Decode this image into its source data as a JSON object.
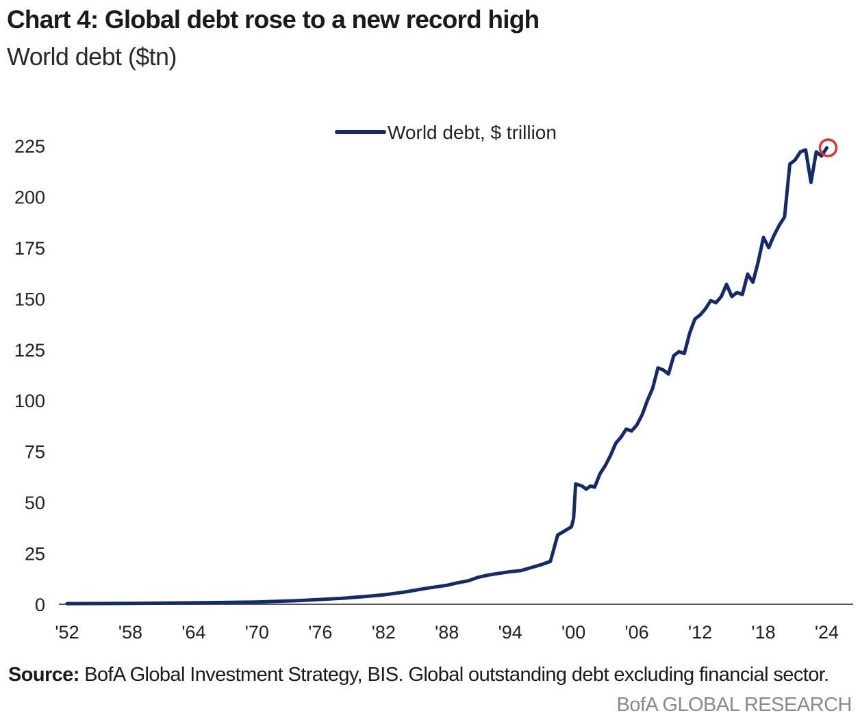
{
  "header": {
    "title": "Chart 4: Global debt rose to a new record high",
    "subtitle": "World debt ($tn)"
  },
  "chart_data": {
    "type": "line",
    "title": "Chart 4: Global debt rose to a new record high",
    "subtitle": "World debt ($tn)",
    "xlabel": "",
    "ylabel": "",
    "xlim": [
      1952,
      2026.5
    ],
    "ylim": [
      0,
      225
    ],
    "yticks": [
      0,
      25,
      50,
      75,
      100,
      125,
      150,
      175,
      200,
      225
    ],
    "xticks": [
      1952,
      1958,
      1964,
      1970,
      1976,
      1982,
      1988,
      1994,
      2000,
      2006,
      2012,
      2018,
      2024
    ],
    "xtick_labels": [
      "'52",
      "'58",
      "'64",
      "'70",
      "'76",
      "'82",
      "'88",
      "'94",
      "'00",
      "'06",
      "'12",
      "'18",
      "'24"
    ],
    "grid": false,
    "legend_position": "top-center",
    "series": [
      {
        "name": "World debt, $ trillion",
        "color": "#132a6b",
        "x": [
          1952,
          1958,
          1964,
          1970,
          1974,
          1978,
          1980,
          1982,
          1984,
          1986,
          1988,
          1989,
          1990,
          1991,
          1992,
          1993,
          1994,
          1995,
          1996,
          1997,
          1997.5,
          1997.8,
          1998.5,
          1999,
          1999.8,
          2000,
          2000.2,
          2000.8,
          2001.2,
          2001.6,
          2002,
          2002.5,
          2003,
          2003.5,
          2004,
          2004.5,
          2005,
          2005.5,
          2006,
          2006.5,
          2007,
          2007.5,
          2008,
          2008.5,
          2009,
          2009.5,
          2010,
          2010.5,
          2011,
          2011.5,
          2012,
          2012.5,
          2013,
          2013.5,
          2014,
          2014.5,
          2015,
          2015.5,
          2016,
          2016.5,
          2017,
          2017.5,
          2018,
          2018.5,
          2019,
          2019.5,
          2020,
          2020.5,
          2021,
          2021.5,
          2022,
          2022.5,
          2023,
          2023.5,
          2024
        ],
        "values": [
          0.3,
          0.4,
          0.7,
          1.1,
          1.8,
          2.9,
          3.7,
          4.6,
          6.0,
          7.8,
          9.3,
          10.5,
          11.5,
          13.3,
          14.4,
          15.2,
          16.0,
          16.5,
          18.0,
          19.5,
          20.5,
          21.0,
          34.0,
          35.5,
          38.0,
          42.0,
          59.0,
          58.0,
          56.5,
          58.0,
          57.5,
          64.0,
          68.0,
          73.0,
          79.0,
          82.0,
          86.0,
          85.0,
          88.0,
          93.0,
          100.0,
          106.0,
          116.0,
          115.0,
          113.0,
          122.0,
          124.0,
          123.0,
          133.0,
          140.0,
          142.0,
          145.0,
          149.0,
          148.0,
          151.0,
          157.0,
          151.0,
          153.0,
          152.0,
          162.0,
          158.0,
          168.0,
          180.0,
          175.0,
          181.0,
          186.0,
          190.0,
          216.0,
          218.0,
          222.0,
          223.0,
          207.0,
          222.0,
          220.0,
          224.0
        ]
      }
    ],
    "annotations": [
      {
        "type": "circle-marker",
        "label": "latest value",
        "x": 2024,
        "y": 224,
        "color": "#d8372a"
      }
    ]
  },
  "footer": {
    "source_label": "Source:",
    "source_text": " BofA Global Investment Strategy, BIS. Global outstanding debt excluding financial sector.",
    "brand": "BofA GLOBAL RESEARCH"
  }
}
